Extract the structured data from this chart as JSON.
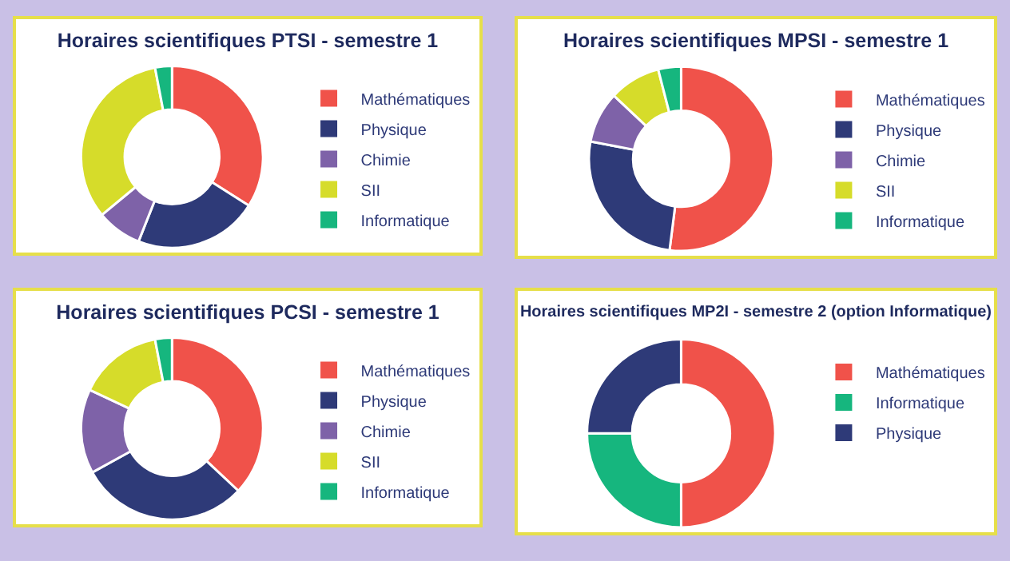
{
  "chart_data": [
    {
      "type": "donut",
      "title": "Horaires scientifiques PTSI - semestre 1",
      "categories": [
        "Mathématiques",
        "Physique",
        "Chimie",
        "SII",
        "Informatique"
      ],
      "values": [
        34,
        22,
        8,
        33,
        3
      ],
      "colors": [
        "#f0524a",
        "#2e3a78",
        "#7e62a8",
        "#d6dc2a",
        "#16b67e"
      ],
      "legend": "right"
    },
    {
      "type": "donut",
      "title": "Horaires scientifiques MPSI - semestre 1",
      "categories": [
        "Mathématiques",
        "Physique",
        "Chimie",
        "SII",
        "Informatique"
      ],
      "values": [
        52,
        26,
        9,
        9,
        4
      ],
      "colors": [
        "#f0524a",
        "#2e3a78",
        "#7e62a8",
        "#d6dc2a",
        "#16b67e"
      ],
      "legend": "right"
    },
    {
      "type": "donut",
      "title": "Horaires scientifiques PCSI - semestre 1",
      "categories": [
        "Mathématiques",
        "Physique",
        "Chimie",
        "SII",
        "Informatique"
      ],
      "values": [
        37,
        30,
        15,
        15,
        3
      ],
      "colors": [
        "#f0524a",
        "#2e3a78",
        "#7e62a8",
        "#d6dc2a",
        "#16b67e"
      ],
      "legend": "right"
    },
    {
      "type": "donut",
      "title": "Horaires scientifiques MP2I - semestre 2 (option Informatique)",
      "categories": [
        "Mathématiques",
        "Informatique",
        "Physique"
      ],
      "values": [
        50,
        25,
        25
      ],
      "colors": [
        "#f0524a",
        "#16b67e",
        "#2e3a78"
      ],
      "legend": "right"
    }
  ]
}
